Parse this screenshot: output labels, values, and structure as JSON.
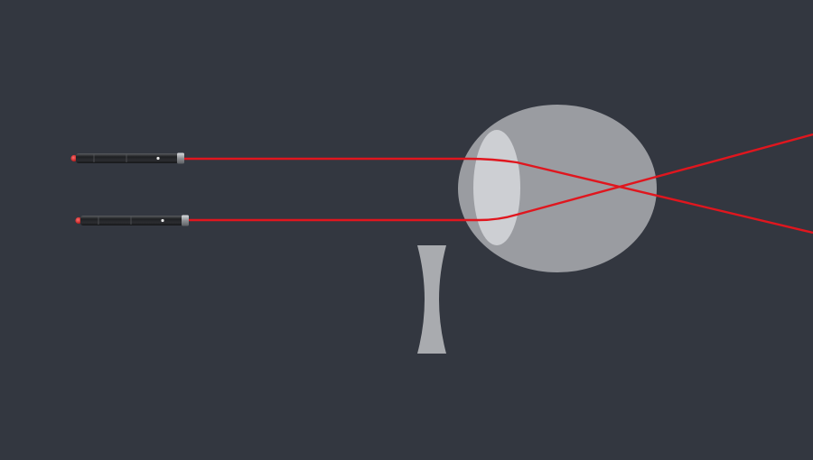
{
  "scene": {
    "background": "#333740",
    "beam_color": "#e0161e",
    "eyeball_color": "#9a9ca1",
    "eye_lens_color": "#cdcfd3",
    "concave_lens_color": "#a9abaf",
    "laser_body_color": "#2b2c2f",
    "laser_tip_color": "#d42a2a"
  },
  "icons": {
    "laser": "laser-pointer-icon",
    "eye": "eyeball",
    "lens": "concave-lens"
  }
}
